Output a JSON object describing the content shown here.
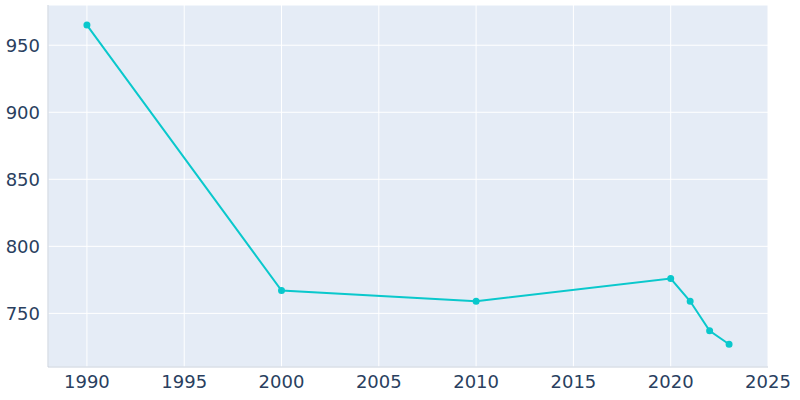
{
  "chart_data": {
    "type": "line",
    "x": [
      1990,
      2000,
      2010,
      2020,
      2021,
      2022,
      2023
    ],
    "values": [
      965,
      767,
      759,
      776,
      759,
      737,
      727
    ],
    "color": "#0ac8cc",
    "xlim": [
      1988,
      2025
    ],
    "xticks": [
      1990,
      1995,
      2000,
      2005,
      2010,
      2015,
      2020,
      2025
    ],
    "ylim": [
      710,
      980
    ],
    "yticks": [
      750,
      800,
      850,
      900,
      950
    ],
    "grid": true,
    "marker": "circle"
  }
}
